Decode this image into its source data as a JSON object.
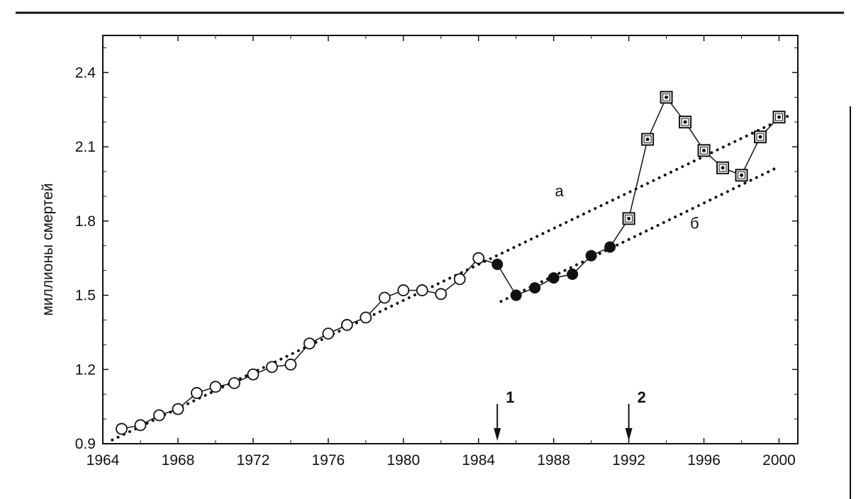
{
  "colors": {
    "ink": "#111111",
    "background": "#ffffff"
  },
  "chart_data": {
    "type": "line",
    "title": "",
    "xlabel": "",
    "ylabel": "миллионы смертей",
    "xlim": [
      1964,
      2001
    ],
    "ylim": [
      0.9,
      2.55
    ],
    "x_ticks": [
      1964,
      1968,
      1972,
      1976,
      1980,
      1984,
      1988,
      1992,
      1996,
      2000
    ],
    "y_ticks": [
      0.9,
      1.2,
      1.5,
      1.8,
      2.1,
      2.4
    ],
    "y_tick_labels": [
      "0.9",
      "1.2",
      "1.5",
      "1.8",
      "2.1",
      "2.4"
    ],
    "grid": false,
    "legend": "none",
    "series": [
      {
        "marker": "open-circle",
        "x": [
          1965,
          1966,
          1967,
          1968,
          1969,
          1970,
          1971,
          1972,
          1973,
          1974,
          1975,
          1976,
          1977,
          1978,
          1979,
          1980,
          1981,
          1982,
          1983,
          1984
        ],
        "y": [
          0.96,
          0.975,
          1.015,
          1.04,
          1.105,
          1.13,
          1.145,
          1.18,
          1.21,
          1.22,
          1.305,
          1.345,
          1.38,
          1.41,
          1.49,
          1.52,
          1.52,
          1.505,
          1.565,
          1.65
        ]
      },
      {
        "marker": "filled-circle",
        "x": [
          1984,
          1985,
          1986,
          1987,
          1988,
          1989,
          1990,
          1991
        ],
        "y": [
          1.65,
          1.625,
          1.5,
          1.53,
          1.57,
          1.585,
          1.66,
          1.695
        ]
      },
      {
        "marker": "boxed-dot",
        "x": [
          1991,
          1992,
          1993,
          1994,
          1995,
          1996,
          1997,
          1998,
          1999,
          2000
        ],
        "y": [
          1.695,
          1.81,
          2.13,
          2.3,
          2.2,
          2.085,
          2.015,
          1.985,
          2.14,
          2.22
        ]
      }
    ],
    "trend_lines": [
      {
        "label": "а",
        "x": [
          1964.5,
          2000.5
        ],
        "y": [
          0.915,
          2.225
        ]
      },
      {
        "label": "б",
        "x": [
          1985.2,
          2000.0
        ],
        "y": [
          1.475,
          2.02
        ]
      }
    ],
    "annotations": [
      {
        "text": "а",
        "x": 1988.3,
        "y": 1.9
      },
      {
        "text": "б",
        "x": 1995.5,
        "y": 1.77
      }
    ],
    "event_markers": [
      {
        "label": "1",
        "x": 1985
      },
      {
        "label": "2",
        "x": 1992
      }
    ]
  }
}
